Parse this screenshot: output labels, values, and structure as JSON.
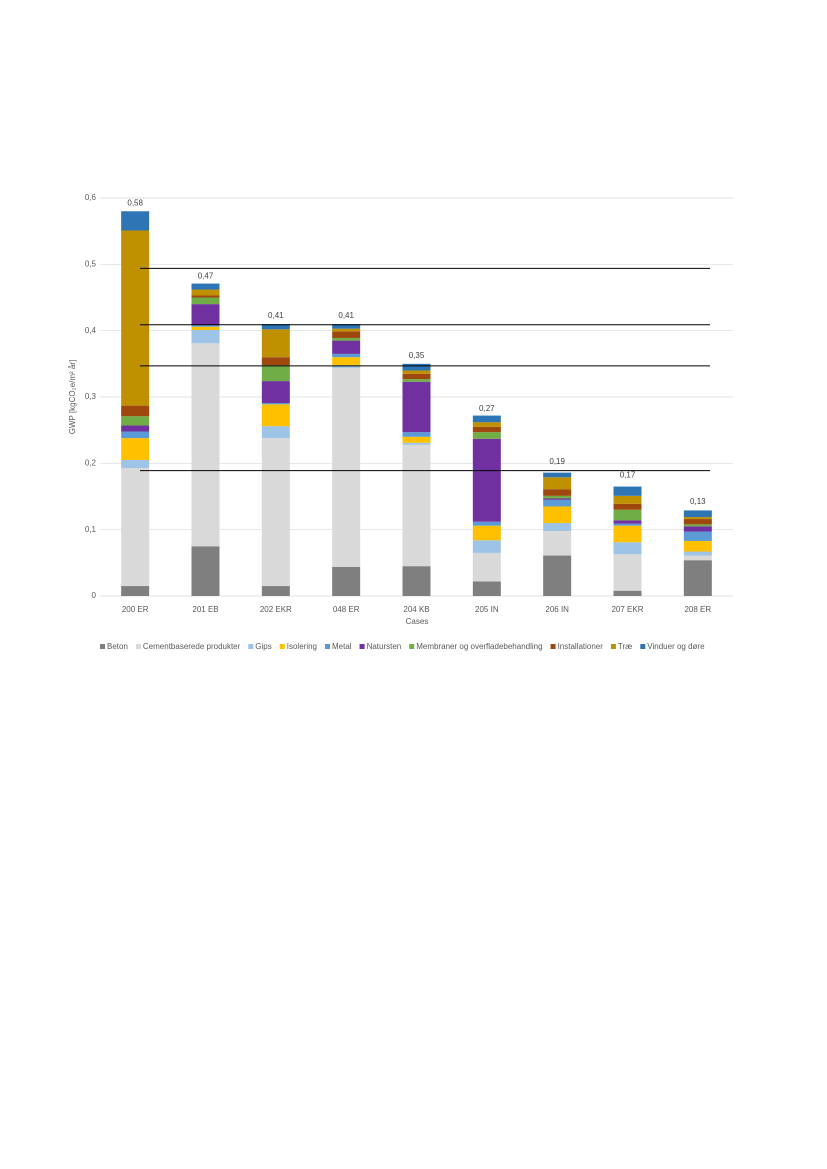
{
  "chart_data": {
    "type": "stacked_bar",
    "ylabel": "GWP [kgCO₂e/m² år]",
    "xlabel": "Cases",
    "categories": [
      "200 ER",
      "201 EB",
      "202 EKR",
      "048 ER",
      "204 KB",
      "205 IN",
      "206 IN",
      "207 EKR",
      "208 ER"
    ],
    "series": [
      {
        "name": "Beton",
        "color": "#7f7f7f",
        "values": [
          0.015,
          0.075,
          0.015,
          0.044,
          0.045,
          0.022,
          0.061,
          0.008,
          0.054
        ]
      },
      {
        "name": "Cementbaserede produkter",
        "color": "#d9d9d9",
        "values": [
          0.178,
          0.306,
          0.223,
          0.3,
          0.183,
          0.043,
          0.037,
          0.055,
          0.007
        ]
      },
      {
        "name": "Gips",
        "color": "#9dc3e6",
        "values": [
          0.012,
          0.02,
          0.018,
          0.004,
          0.003,
          0.019,
          0.012,
          0.018,
          0.006
        ]
      },
      {
        "name": "Isolering",
        "color": "#ffc000",
        "values": [
          0.033,
          0.005,
          0.033,
          0.012,
          0.009,
          0.022,
          0.025,
          0.025,
          0.016
        ]
      },
      {
        "name": "Metal",
        "color": "#5b9bd5",
        "values": [
          0.01,
          0.003,
          0.002,
          0.005,
          0.007,
          0.006,
          0.01,
          0.003,
          0.014
        ]
      },
      {
        "name": "Natursten",
        "color": "#7030a0",
        "values": [
          0.009,
          0.031,
          0.033,
          0.02,
          0.076,
          0.125,
          0.002,
          0.005,
          0.008
        ]
      },
      {
        "name": "Membraner og overfladebehandling",
        "color": "#70ad47",
        "values": [
          0.014,
          0.01,
          0.024,
          0.004,
          0.004,
          0.01,
          0.004,
          0.016,
          0.003
        ]
      },
      {
        "name": "Installationer",
        "color": "#9e480e",
        "values": [
          0.016,
          0.003,
          0.012,
          0.01,
          0.008,
          0.008,
          0.01,
          0.009,
          0.008
        ]
      },
      {
        "name": "Træ",
        "color": "#bf9000",
        "values": [
          0.264,
          0.009,
          0.042,
          0.004,
          0.005,
          0.007,
          0.018,
          0.012,
          0.003
        ]
      },
      {
        "name": "Vinduer og døre",
        "color": "#2e75b6",
        "values": [
          0.029,
          0.009,
          0.008,
          0.007,
          0.01,
          0.01,
          0.007,
          0.014,
          0.01
        ]
      }
    ],
    "totals": [
      0.58,
      0.47,
      0.41,
      0.41,
      0.35,
      0.27,
      0.19,
      0.17,
      0.13
    ],
    "total_labels": [
      "0,58",
      "0,47",
      "0,41",
      "0,41",
      "0,35",
      "0,27",
      "0,19",
      "0,17",
      "0,13"
    ],
    "reference_lines": [
      0.494,
      0.409,
      0.347,
      0.189
    ],
    "ylim": [
      0,
      0.6
    ],
    "yticks": [
      0,
      {
        "value": 0.1,
        "label": "0,1"
      },
      {
        "value": 0.2,
        "label": "0,2"
      },
      {
        "value": 0.3,
        "label": "0,3"
      },
      {
        "value": 0.4,
        "label": "0,4"
      },
      {
        "value": 0.5,
        "label": "0,5"
      },
      {
        "value": 0.6,
        "label": "0,6"
      }
    ],
    "grid": true,
    "legend": "bottom"
  }
}
